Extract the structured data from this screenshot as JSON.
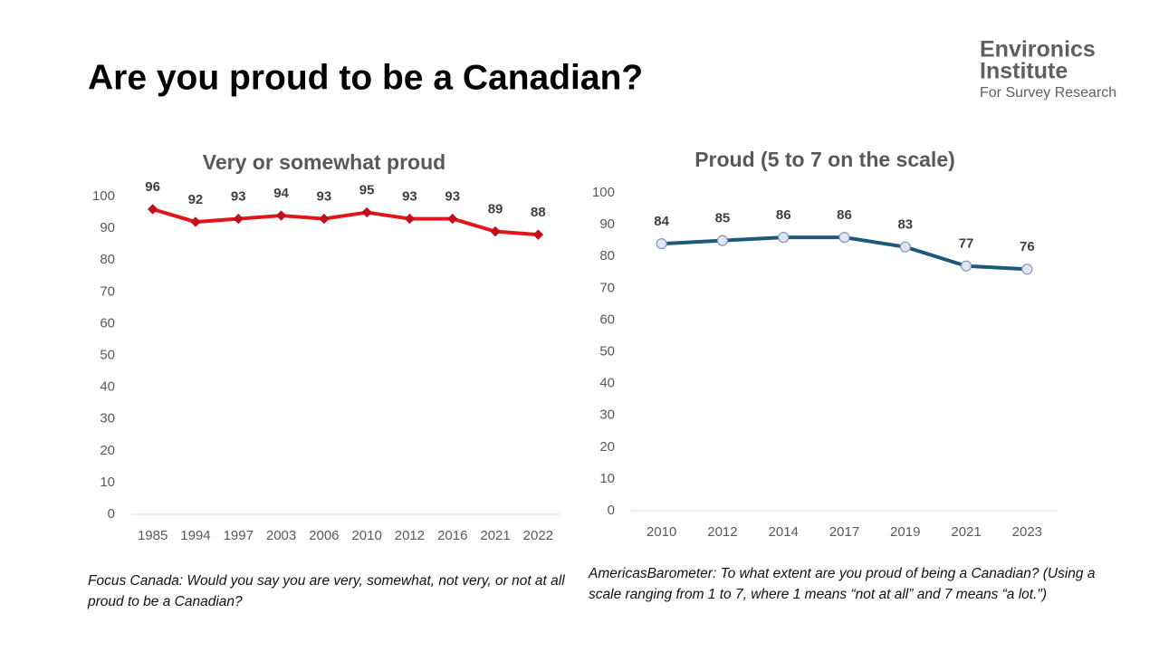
{
  "title": "Are you proud to be a Canadian?",
  "logo": {
    "name": [
      "Environics",
      "Institute"
    ],
    "tagline": "For Survey Research"
  },
  "chart_data": [
    {
      "type": "line",
      "title": "Very or somewhat proud",
      "categories": [
        "1985",
        "1994",
        "1997",
        "2003",
        "2006",
        "2010",
        "2012",
        "2016",
        "2021",
        "2022"
      ],
      "values": [
        96,
        92,
        93,
        94,
        93,
        95,
        93,
        93,
        89,
        88
      ],
      "color": "#e0161b",
      "marker": "diamond",
      "marker_fill": "#c0101a",
      "marker_stroke": "#c0101a",
      "ylim": [
        0,
        100
      ],
      "yticks": [
        0,
        10,
        20,
        30,
        40,
        50,
        60,
        70,
        80,
        90,
        100
      ],
      "grid": false,
      "caption": "Focus Canada: Would you say you are very, somewhat, not very, or not at all proud to be a Canadian?"
    },
    {
      "type": "line",
      "title": "Proud (5 to 7 on the scale)",
      "categories": [
        "2010",
        "2012",
        "2014",
        "2017",
        "2019",
        "2021",
        "2023"
      ],
      "values": [
        84,
        85,
        86,
        86,
        83,
        77,
        76
      ],
      "color": "#1d5a78",
      "marker": "circle",
      "marker_fill": "#dfe5f7",
      "marker_stroke": "#8796bd",
      "ylim": [
        0,
        100
      ],
      "yticks": [
        0,
        10,
        20,
        30,
        40,
        50,
        60,
        70,
        80,
        90,
        100
      ],
      "grid": false,
      "caption": "AmericasBarometer: To what extent are you proud of being a Canadian? (Using a scale ranging from 1 to 7, where 1 means “not at all” and 7 means “a lot.\")"
    }
  ]
}
